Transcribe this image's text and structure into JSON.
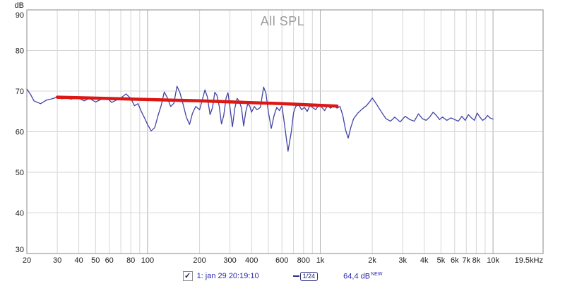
{
  "chart_data": {
    "type": "line",
    "title": "All SPL",
    "x_axis": {
      "scale": "log",
      "min": 20,
      "max": 19500,
      "unit": "Hz",
      "ticks": [
        {
          "f": 20,
          "label": "20"
        },
        {
          "f": 30,
          "label": "30"
        },
        {
          "f": 40,
          "label": "40"
        },
        {
          "f": 50,
          "label": "50"
        },
        {
          "f": 60,
          "label": "60"
        },
        {
          "f": 80,
          "label": "80"
        },
        {
          "f": 100,
          "label": "100"
        },
        {
          "f": 200,
          "label": "200"
        },
        {
          "f": 300,
          "label": "300"
        },
        {
          "f": 400,
          "label": "400"
        },
        {
          "f": 600,
          "label": "600"
        },
        {
          "f": 800,
          "label": "800"
        },
        {
          "f": 1000,
          "label": "1k"
        },
        {
          "f": 2000,
          "label": "2k"
        },
        {
          "f": 3000,
          "label": "3k"
        },
        {
          "f": 4000,
          "label": "4k"
        },
        {
          "f": 5000,
          "label": "5k"
        },
        {
          "f": 6000,
          "label": "6k"
        },
        {
          "f": 7000,
          "label": "7k"
        },
        {
          "f": 8000,
          "label": "8k"
        },
        {
          "f": 10000,
          "label": "10k"
        },
        {
          "f": 19500,
          "label": "19.5kHz",
          "anchor": "end"
        }
      ]
    },
    "y_axis": {
      "label": "dB",
      "min": 30,
      "max": 90,
      "ticks": [
        90,
        80,
        70,
        60,
        50,
        40,
        30
      ]
    },
    "grid": {
      "vertical": [
        20,
        30,
        40,
        50,
        60,
        70,
        80,
        90,
        100,
        200,
        300,
        400,
        500,
        600,
        700,
        800,
        900,
        1000,
        2000,
        3000,
        4000,
        5000,
        6000,
        7000,
        8000,
        9000,
        10000
      ],
      "vertical_major": [
        100,
        1000,
        10000
      ],
      "horizontal": [
        40,
        50,
        60,
        70,
        80
      ],
      "minor_color": "#d6d6d6",
      "major_color": "#b2b2b2",
      "border_color": "#8a8a8a",
      "text_color": "#1a1a1a"
    },
    "series": [
      {
        "name": "all-spl-trace",
        "color": "#4143a4",
        "width": 1.3,
        "points": [
          [
            20,
            70.5
          ],
          [
            21,
            69.2
          ],
          [
            22,
            67.6
          ],
          [
            24,
            66.9
          ],
          [
            26,
            67.8
          ],
          [
            28,
            68.1
          ],
          [
            30,
            68.5
          ],
          [
            32,
            68.1
          ],
          [
            34,
            68.4
          ],
          [
            36,
            68.0
          ],
          [
            38,
            68.3
          ],
          [
            40,
            68.2
          ],
          [
            43,
            67.6
          ],
          [
            46,
            68.2
          ],
          [
            50,
            67.3
          ],
          [
            54,
            68.0
          ],
          [
            58,
            68.4
          ],
          [
            62,
            67.2
          ],
          [
            66,
            67.8
          ],
          [
            70,
            68.3
          ],
          [
            75,
            69.3
          ],
          [
            80,
            68.2
          ],
          [
            84,
            66.4
          ],
          [
            88,
            66.9
          ],
          [
            92,
            65.0
          ],
          [
            96,
            63.4
          ],
          [
            100,
            61.8
          ],
          [
            105,
            60.2
          ],
          [
            110,
            61.0
          ],
          [
            115,
            64.0
          ],
          [
            120,
            66.5
          ],
          [
            125,
            69.8
          ],
          [
            130,
            68.4
          ],
          [
            136,
            66.2
          ],
          [
            142,
            67.0
          ],
          [
            148,
            71.2
          ],
          [
            154,
            69.6
          ],
          [
            160,
            67.0
          ],
          [
            168,
            63.5
          ],
          [
            175,
            61.8
          ],
          [
            182,
            64.5
          ],
          [
            190,
            66.2
          ],
          [
            200,
            65.4
          ],
          [
            208,
            68.0
          ],
          [
            215,
            70.3
          ],
          [
            222,
            68.6
          ],
          [
            230,
            64.2
          ],
          [
            238,
            66.0
          ],
          [
            245,
            69.7
          ],
          [
            252,
            69.0
          ],
          [
            260,
            66.3
          ],
          [
            268,
            61.9
          ],
          [
            276,
            64.0
          ],
          [
            285,
            68.4
          ],
          [
            292,
            69.6
          ],
          [
            300,
            66.0
          ],
          [
            310,
            61.2
          ],
          [
            320,
            65.8
          ],
          [
            330,
            68.2
          ],
          [
            340,
            67.4
          ],
          [
            350,
            65.8
          ],
          [
            360,
            61.4
          ],
          [
            370,
            64.8
          ],
          [
            380,
            66.8
          ],
          [
            390,
            66.4
          ],
          [
            400,
            64.8
          ],
          [
            415,
            66.2
          ],
          [
            430,
            65.4
          ],
          [
            450,
            66.0
          ],
          [
            470,
            71.0
          ],
          [
            485,
            69.4
          ],
          [
            500,
            65.0
          ],
          [
            520,
            60.8
          ],
          [
            540,
            64.0
          ],
          [
            560,
            66.0
          ],
          [
            580,
            65.2
          ],
          [
            600,
            66.4
          ],
          [
            620,
            62.0
          ],
          [
            650,
            55.2
          ],
          [
            680,
            60.0
          ],
          [
            700,
            64.6
          ],
          [
            720,
            66.2
          ],
          [
            750,
            66.6
          ],
          [
            780,
            65.4
          ],
          [
            810,
            66.0
          ],
          [
            840,
            65.0
          ],
          [
            870,
            66.4
          ],
          [
            900,
            66.0
          ],
          [
            940,
            65.4
          ],
          [
            980,
            66.6
          ],
          [
            1020,
            66.0
          ],
          [
            1060,
            65.2
          ],
          [
            1100,
            66.4
          ],
          [
            1150,
            65.8
          ],
          [
            1200,
            66.6
          ],
          [
            1250,
            65.8
          ],
          [
            1300,
            66.2
          ],
          [
            1350,
            64.0
          ],
          [
            1400,
            60.5
          ],
          [
            1450,
            58.4
          ],
          [
            1500,
            61.0
          ],
          [
            1560,
            63.2
          ],
          [
            1650,
            64.6
          ],
          [
            1750,
            65.6
          ],
          [
            1850,
            66.4
          ],
          [
            1950,
            67.6
          ],
          [
            2000,
            68.3
          ],
          [
            2100,
            67.0
          ],
          [
            2250,
            65.0
          ],
          [
            2400,
            63.2
          ],
          [
            2550,
            62.6
          ],
          [
            2700,
            63.6
          ],
          [
            2900,
            62.4
          ],
          [
            3100,
            63.8
          ],
          [
            3300,
            63.0
          ],
          [
            3500,
            62.6
          ],
          [
            3700,
            64.4
          ],
          [
            3900,
            63.2
          ],
          [
            4100,
            62.8
          ],
          [
            4300,
            63.6
          ],
          [
            4500,
            64.8
          ],
          [
            4700,
            64.0
          ],
          [
            4900,
            63.0
          ],
          [
            5100,
            63.6
          ],
          [
            5400,
            62.8
          ],
          [
            5700,
            63.4
          ],
          [
            6000,
            63.0
          ],
          [
            6300,
            62.6
          ],
          [
            6600,
            63.8
          ],
          [
            6900,
            62.8
          ],
          [
            7200,
            64.2
          ],
          [
            7500,
            63.4
          ],
          [
            7800,
            62.8
          ],
          [
            8100,
            64.6
          ],
          [
            8400,
            63.6
          ],
          [
            8700,
            62.8
          ],
          [
            9000,
            63.2
          ],
          [
            9300,
            64.0
          ],
          [
            9600,
            63.4
          ],
          [
            10000,
            63.1
          ]
        ]
      },
      {
        "name": "trend-line",
        "color": "#dd1814",
        "width": 4.5,
        "points": [
          [
            30,
            68.5
          ],
          [
            200,
            67.6
          ],
          [
            600,
            66.9
          ],
          [
            1250,
            66.3
          ]
        ]
      }
    ]
  },
  "legend": {
    "checkbox_checked": true,
    "trace_label": "1: jan 29 20:19:10",
    "smoothing": "1/24",
    "value": "64,4 dB",
    "value_suffix": "NEW",
    "accent_color": "#2a2ab4"
  }
}
